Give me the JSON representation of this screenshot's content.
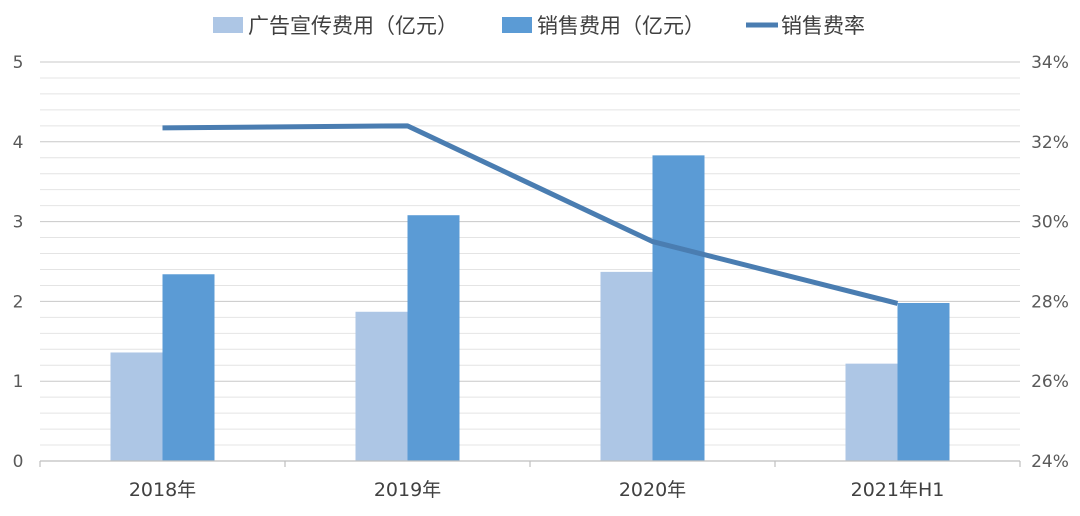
{
  "chart_data": {
    "type": "bar",
    "categories": [
      "2018年",
      "2019年",
      "2020年",
      "2021年H1"
    ],
    "series": [
      {
        "name": "广告宣传费用（亿元）",
        "type": "bar",
        "axis": "left",
        "color": "#adc6e5",
        "values": [
          1.36,
          1.87,
          2.37,
          1.22
        ]
      },
      {
        "name": "销售费用（亿元）",
        "type": "bar",
        "axis": "left",
        "color": "#5b9bd5",
        "values": [
          2.34,
          3.08,
          3.83,
          1.98
        ]
      },
      {
        "name": "销售费率",
        "type": "line",
        "axis": "right",
        "color": "#4a7db1",
        "values": [
          32.35,
          32.4,
          29.5,
          27.95
        ]
      }
    ],
    "y_left": {
      "min": 0,
      "max": 5,
      "ticks": [
        "0",
        "1",
        "2",
        "3",
        "4",
        "5"
      ]
    },
    "y_right": {
      "min": 24,
      "max": 34,
      "unit": "%",
      "ticks": [
        "24%",
        "26%",
        "28%",
        "30%",
        "32%",
        "34%"
      ]
    },
    "grid": true,
    "legend": "top"
  }
}
